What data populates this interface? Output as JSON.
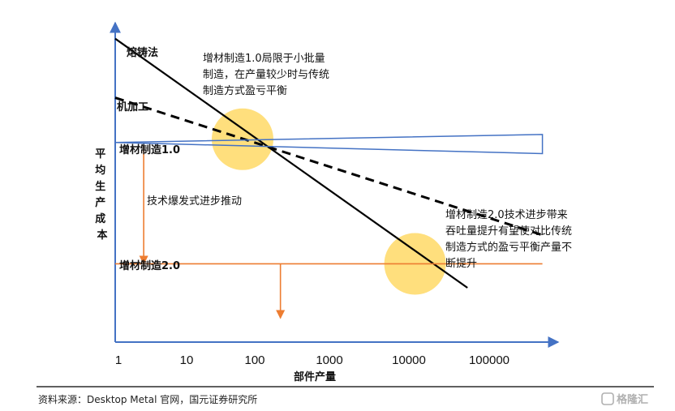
{
  "chart_data": {
    "type": "line",
    "x_scale": "log",
    "xlabel": "部件产量",
    "ylabel": "平均生产成本",
    "x_ticks": [
      "1",
      "10",
      "100",
      "1000",
      "10000",
      "100000"
    ],
    "series": [
      {
        "name": "熔铸法",
        "style": "solid",
        "color": "#000000",
        "x": [
          1,
          50000
        ],
        "y": [
          0.95,
          0.17
        ]
      },
      {
        "name": "机加工",
        "style": "dashed",
        "color": "#000000",
        "x": [
          1,
          500000
        ],
        "y": [
          0.765,
          0.335
        ]
      },
      {
        "name": "增材制造1.0",
        "style": "wedge",
        "color": "#4472C4",
        "x": [
          1,
          500000
        ],
        "y_center": [
          0.625,
          0.62
        ],
        "y_spread": [
          0,
          0.06
        ]
      },
      {
        "name": "增材制造2.0",
        "style": "solid",
        "color": "#ED7D31",
        "x": [
          1,
          500000
        ],
        "y": [
          0.245,
          0.245
        ]
      }
    ],
    "highlights": [
      {
        "x": 50,
        "y": 0.635,
        "color": "#FFD966"
      },
      {
        "x": 10000,
        "y": 0.245,
        "color": "#FFD966"
      }
    ],
    "arrows": [
      {
        "x": 2.4,
        "y_from": 0.615,
        "y_to": 0.245,
        "color": "#ED7D31"
      },
      {
        "x": 160,
        "y_from": 0.245,
        "y_to": 0.075,
        "color": "#ED7D31"
      }
    ],
    "annotations": [
      "增材制造1.0局限于小批量",
      "制造，在产量较少时与传统",
      "制造方式盈亏平衡",
      "技术爆发式进步推动",
      "增材制造2.0技术进步带来",
      "吞吐量提升有望使对比传统",
      "制造方式的盈亏平衡产量不",
      "断提升"
    ]
  },
  "source": "资料来源：Desktop Metal 官网，国元证券研究所",
  "watermark": "格隆汇",
  "colors": {
    "axis": "#4472C4",
    "orange": "#ED7D31",
    "highlight": "#FFD966"
  }
}
